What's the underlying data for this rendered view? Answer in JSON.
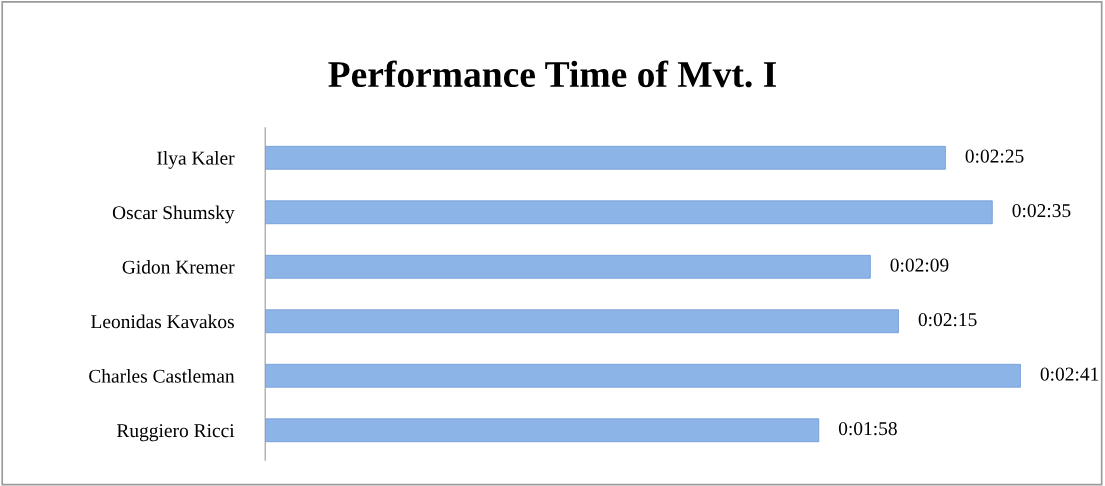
{
  "chart_data": {
    "type": "bar",
    "orientation": "horizontal",
    "title": "Performance Time of Mvt. I",
    "categories": [
      "Ilya Kaler",
      "Oscar Shumsky",
      "Gidon Kremer",
      "Leonidas Kavakos",
      "Charles Castleman",
      "Ruggiero Ricci"
    ],
    "values": [
      145,
      155,
      129,
      135,
      161,
      118
    ],
    "value_labels": [
      "0:02:25",
      "0:02:35",
      "0:02:09",
      "0:02:15",
      "0:02:41",
      "0:01:58"
    ],
    "color": "#8db4e6",
    "tick_labels": "y",
    "grid": false,
    "legend": false
  }
}
